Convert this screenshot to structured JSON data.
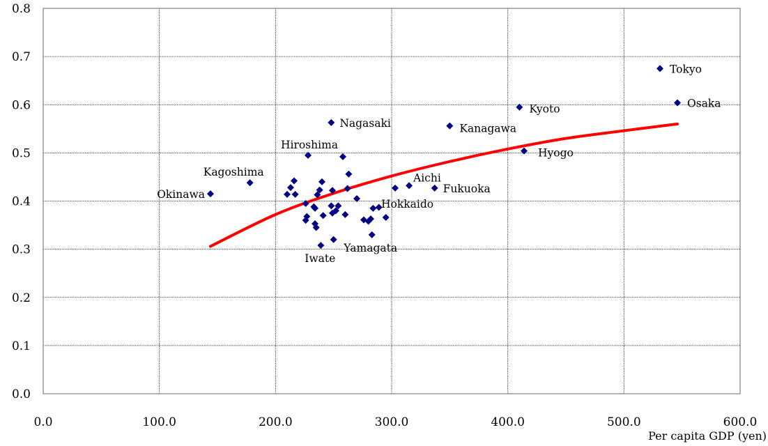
{
  "chart_data": {
    "type": "scatter",
    "xlabel": "Per capita GDP (yen)",
    "ylabel": "",
    "xlim": [
      0,
      600
    ],
    "ylim": [
      0,
      0.8
    ],
    "x_ticks": [
      "0.0",
      "100.0",
      "200.0",
      "300.0",
      "400.0",
      "500.0",
      "600.0"
    ],
    "y_ticks": [
      "0.0",
      "0.1",
      "0.2",
      "0.3",
      "0.4",
      "0.5",
      "0.6",
      "0.7",
      "0.8"
    ],
    "grid": true,
    "colors": {
      "points": "#000080",
      "trend": "#ff0000"
    },
    "series": [
      {
        "points": [
          {
            "x": 144,
            "y": 0.415,
            "label": "Okinawa"
          },
          {
            "x": 178,
            "y": 0.438,
            "label": "Kagoshima"
          },
          {
            "x": 228,
            "y": 0.495,
            "label": "Hiroshima"
          },
          {
            "x": 248,
            "y": 0.563,
            "label": "Nagasaki"
          },
          {
            "x": 239,
            "y": 0.308,
            "label": "Iwate"
          },
          {
            "x": 283,
            "y": 0.33,
            "label": "Yamagata"
          },
          {
            "x": 315,
            "y": 0.432,
            "label": "Aichi"
          },
          {
            "x": 303,
            "y": 0.427,
            "label": "Hokkaido"
          },
          {
            "x": 337,
            "y": 0.427,
            "label": "Fukuoka"
          },
          {
            "x": 350,
            "y": 0.556,
            "label": "Kanagawa"
          },
          {
            "x": 410,
            "y": 0.595,
            "label": "Kyoto"
          },
          {
            "x": 414,
            "y": 0.504,
            "label": "Hyogo"
          },
          {
            "x": 531,
            "y": 0.675,
            "label": "Tokyo"
          },
          {
            "x": 546,
            "y": 0.604,
            "label": "Osaka"
          },
          {
            "x": 210,
            "y": 0.414
          },
          {
            "x": 213,
            "y": 0.428
          },
          {
            "x": 216,
            "y": 0.442
          },
          {
            "x": 217,
            "y": 0.414
          },
          {
            "x": 226,
            "y": 0.395
          },
          {
            "x": 226,
            "y": 0.36
          },
          {
            "x": 227,
            "y": 0.368
          },
          {
            "x": 233,
            "y": 0.388
          },
          {
            "x": 234,
            "y": 0.385
          },
          {
            "x": 234,
            "y": 0.353
          },
          {
            "x": 235,
            "y": 0.345
          },
          {
            "x": 236,
            "y": 0.413
          },
          {
            "x": 238,
            "y": 0.423
          },
          {
            "x": 240,
            "y": 0.44
          },
          {
            "x": 241,
            "y": 0.37
          },
          {
            "x": 248,
            "y": 0.39
          },
          {
            "x": 249,
            "y": 0.422
          },
          {
            "x": 249,
            "y": 0.375
          },
          {
            "x": 250,
            "y": 0.32
          },
          {
            "x": 252,
            "y": 0.38
          },
          {
            "x": 254,
            "y": 0.39
          },
          {
            "x": 258,
            "y": 0.492
          },
          {
            "x": 260,
            "y": 0.372
          },
          {
            "x": 262,
            "y": 0.426
          },
          {
            "x": 263,
            "y": 0.456
          },
          {
            "x": 270,
            "y": 0.405
          },
          {
            "x": 276,
            "y": 0.361
          },
          {
            "x": 280,
            "y": 0.358
          },
          {
            "x": 282,
            "y": 0.363
          },
          {
            "x": 284,
            "y": 0.385
          },
          {
            "x": 289,
            "y": 0.387
          },
          {
            "x": 295,
            "y": 0.366
          }
        ]
      }
    ],
    "trendline": {
      "type": "curve",
      "points": [
        [
          144,
          0.306
        ],
        [
          200,
          0.372
        ],
        [
          250,
          0.416
        ],
        [
          300,
          0.452
        ],
        [
          350,
          0.482
        ],
        [
          400,
          0.508
        ],
        [
          450,
          0.53
        ],
        [
          500,
          0.546
        ],
        [
          546,
          0.56
        ]
      ]
    }
  }
}
